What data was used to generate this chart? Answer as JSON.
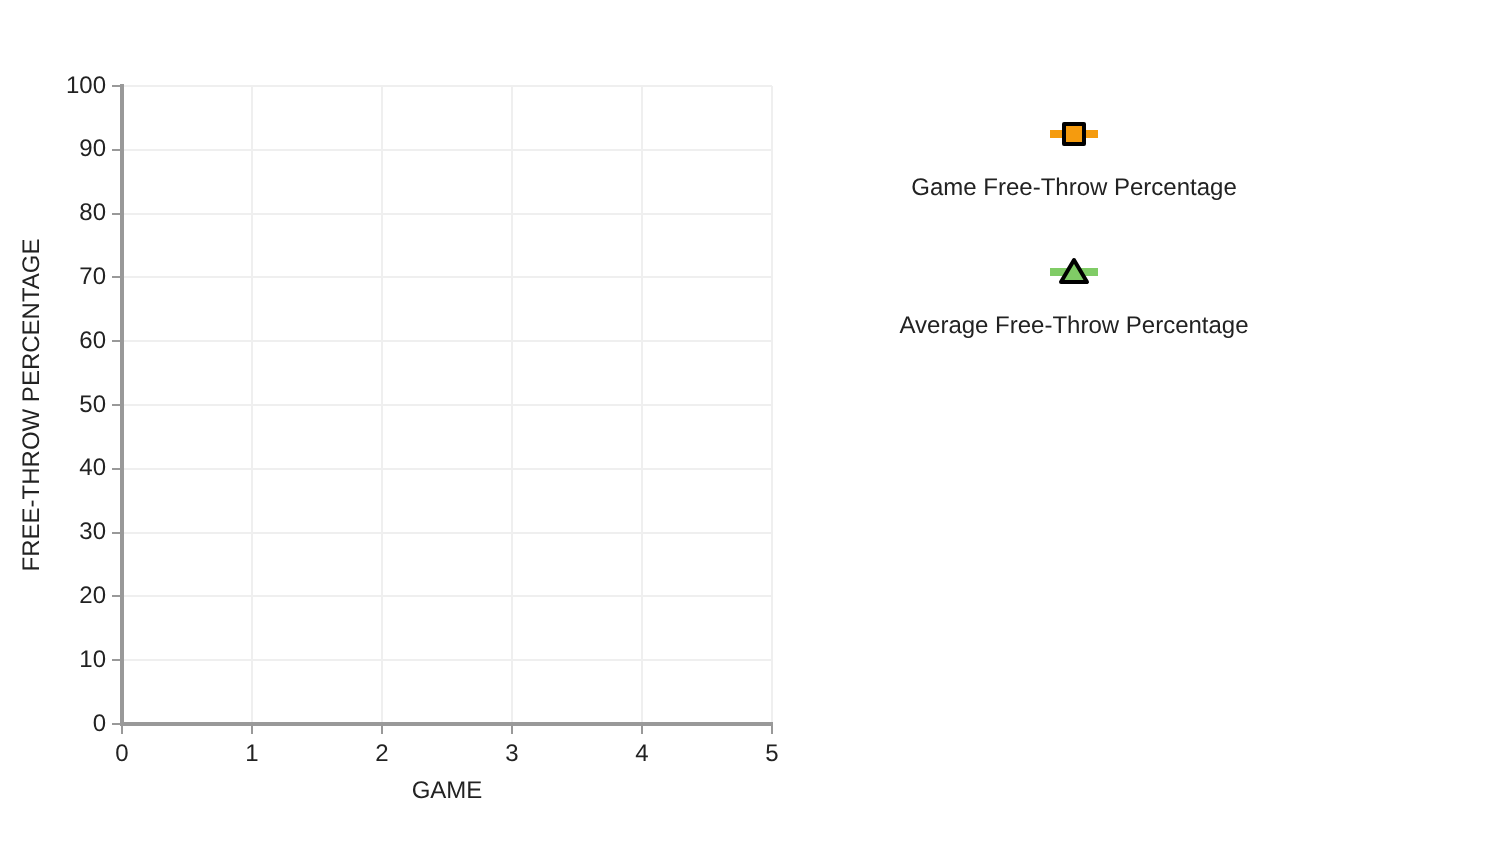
{
  "chart_data": {
    "type": "line",
    "xlabel": "GAME",
    "ylabel": "FREE-THROW PERCENTAGE",
    "categories": [
      "0",
      "1",
      "2",
      "3",
      "4",
      "5"
    ],
    "ylim": [
      0,
      100
    ],
    "yticks": [
      0,
      10,
      20,
      30,
      40,
      50,
      60,
      70,
      80,
      90,
      100
    ],
    "grid": true,
    "legend": "right",
    "series": [
      {
        "name": "Game Free-Throw Percentage",
        "color": "#f59b0e",
        "marker": "square",
        "values": [
          null,
          null,
          null,
          null,
          null,
          null
        ]
      },
      {
        "name": "Average Free-Throw Percentage",
        "color": "#80cc66",
        "marker": "triangle",
        "values": [
          null,
          null,
          null,
          null,
          null,
          null
        ]
      }
    ]
  }
}
